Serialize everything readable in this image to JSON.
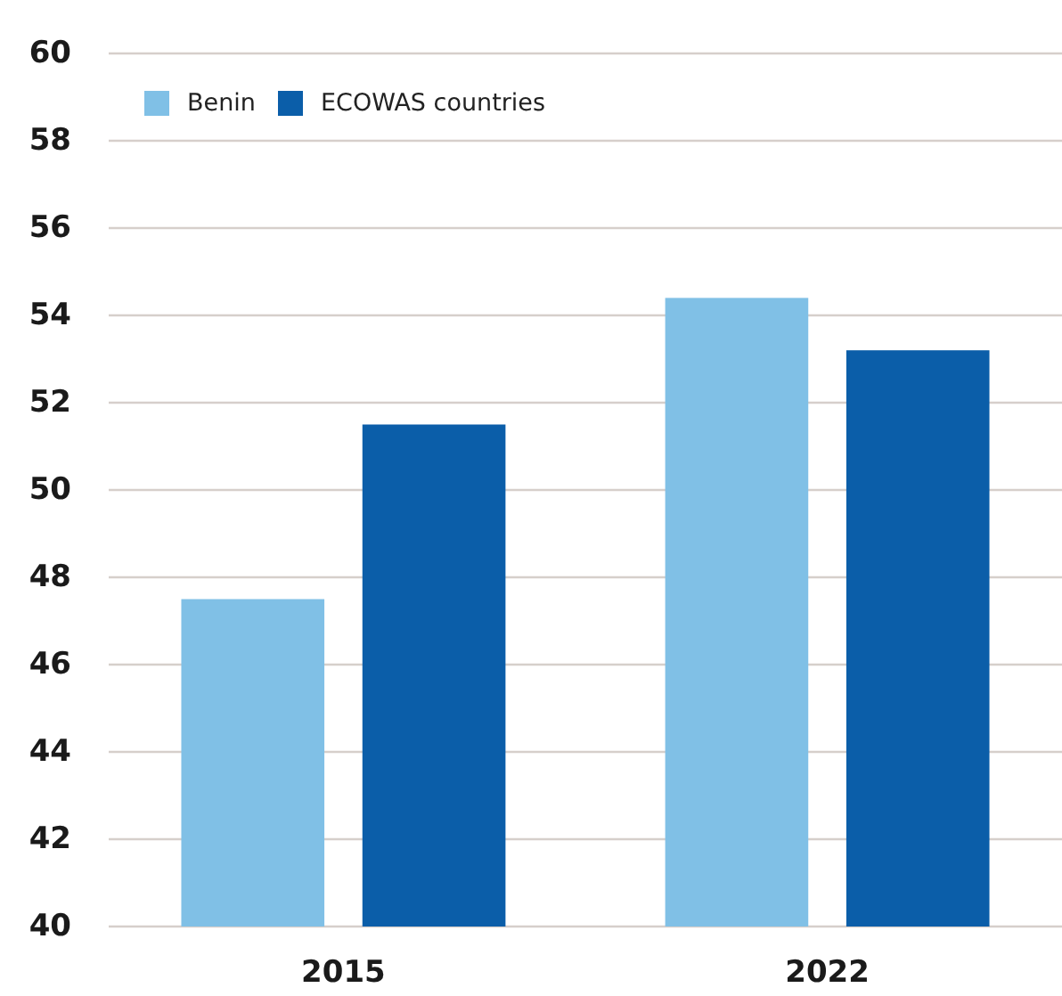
{
  "chart_data": {
    "type": "bar",
    "categories": [
      "2015",
      "2022"
    ],
    "series": [
      {
        "name": "Benin",
        "color": "#80c0e6",
        "values": [
          47.5,
          54.4
        ]
      },
      {
        "name": "ECOWAS countries",
        "color": "#0b5ea9",
        "values": [
          51.5,
          53.2
        ]
      }
    ],
    "ylim": [
      40,
      60
    ],
    "yticks": [
      40,
      42,
      44,
      46,
      48,
      50,
      52,
      54,
      56,
      58,
      60
    ],
    "grid": "y",
    "legend": "top left"
  }
}
